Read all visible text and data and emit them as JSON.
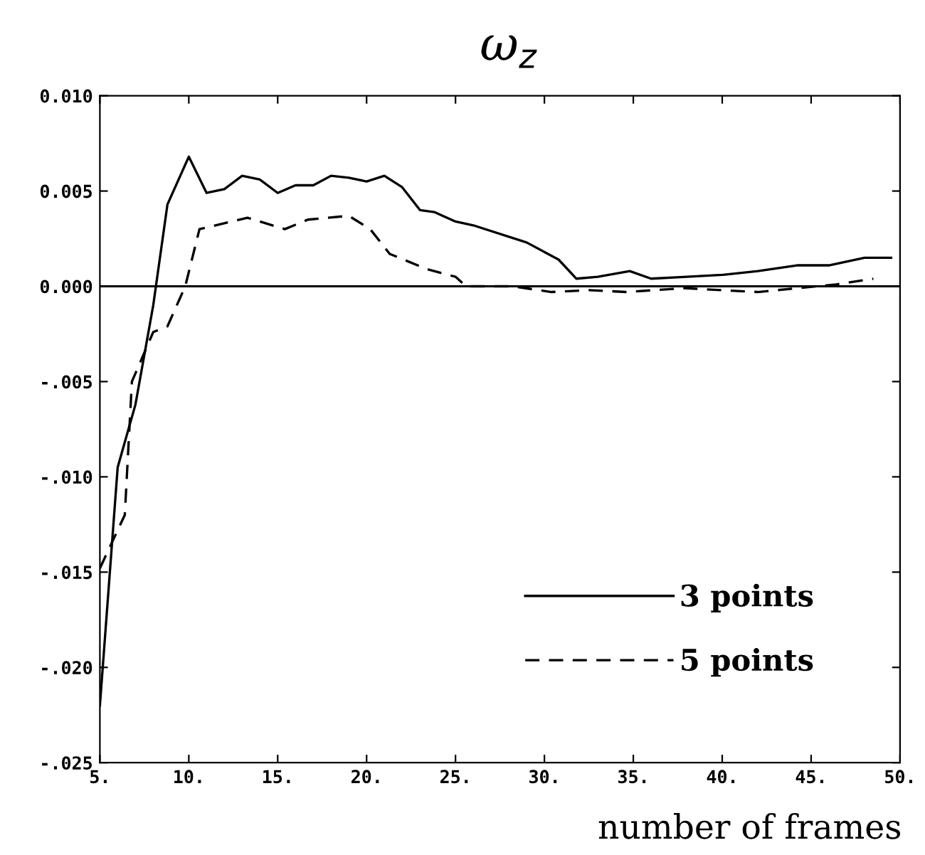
{
  "chart_data": {
    "type": "line",
    "title": "ω$_{z}$",
    "xlabel": "number of frames",
    "xlim": [
      5,
      50
    ],
    "ylim": [
      -0.025,
      0.01
    ],
    "xticks": [
      {
        "value": 5,
        "label": "5."
      },
      {
        "value": 10,
        "label": "10."
      },
      {
        "value": 15,
        "label": "15."
      },
      {
        "value": 20,
        "label": "20."
      },
      {
        "value": 25,
        "label": "25."
      },
      {
        "value": 30,
        "label": "30."
      },
      {
        "value": 35,
        "label": "35."
      },
      {
        "value": 40,
        "label": "40."
      },
      {
        "value": 45,
        "label": "45."
      },
      {
        "value": 50,
        "label": "50."
      }
    ],
    "yticks": [
      {
        "value": -0.025,
        "label": "-.025"
      },
      {
        "value": -0.02,
        "label": "-.020"
      },
      {
        "value": -0.015,
        "label": "-.015"
      },
      {
        "value": -0.01,
        "label": "-.010"
      },
      {
        "value": -0.005,
        "label": "-.005"
      },
      {
        "value": 0,
        "label": "0.000"
      },
      {
        "value": 0.005,
        "label": "0.005"
      },
      {
        "value": 0.01,
        "label": "0.010"
      }
    ],
    "grid": false,
    "legend": "bottom right",
    "marker": "none",
    "ref_lines": [
      {
        "axis": "y",
        "value": 0,
        "color": "#000000",
        "line_style": "solid"
      }
    ],
    "series": [
      {
        "name": "3 points",
        "color": "#000000",
        "line_style": "solid",
        "x": [
          5,
          6,
          7,
          8,
          8.8,
          10,
          11,
          12,
          13,
          14,
          15,
          16,
          17,
          18,
          19,
          20,
          21,
          22,
          23,
          23.8,
          25,
          26,
          29,
          30.8,
          31.8,
          33,
          34.8,
          36,
          38,
          40,
          42,
          44.2,
          46,
          48,
          49.5
        ],
        "values": [
          -0.022,
          -0.0095,
          -0.0062,
          -0.001,
          0.0043,
          0.0068,
          0.0049,
          0.0051,
          0.0058,
          0.0056,
          0.0049,
          0.0053,
          0.0053,
          0.0058,
          0.0057,
          0.0055,
          0.0058,
          0.0052,
          0.004,
          0.0039,
          0.0034,
          0.0032,
          0.0023,
          0.0014,
          0.0004,
          0.0005,
          0.0008,
          0.0004,
          0.0005,
          0.0006,
          0.0008,
          0.0011,
          0.0011,
          0.0015,
          0.0015
        ]
      },
      {
        "name": "5 points",
        "color": "#000000",
        "line_style": "dashed",
        "x": [
          5,
          6.4,
          6.8,
          8,
          8.8,
          9.8,
          10.6,
          13.3,
          15.4,
          16.7,
          19,
          20.2,
          21.3,
          23.4,
          25,
          25.6,
          28.2,
          30.4,
          32.5,
          34.6,
          37.8,
          42,
          46.4,
          48.5
        ],
        "values": [
          -0.0148,
          -0.012,
          -0.005,
          -0.0024,
          -0.0021,
          0.0,
          0.003,
          0.0036,
          0.003,
          0.0035,
          0.0037,
          0.003,
          0.0017,
          0.0009,
          0.0005,
          0.0,
          0.0,
          -0.0003,
          -0.0002,
          -0.0003,
          -0.0001,
          -0.0003,
          0.0001,
          0.0004
        ]
      }
    ]
  }
}
